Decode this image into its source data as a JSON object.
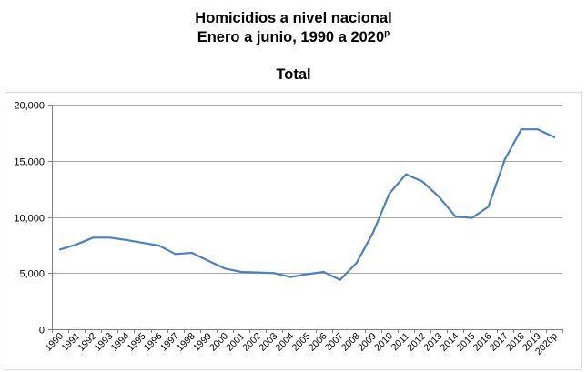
{
  "header": {
    "title_line1": "Homicidios a nivel nacional",
    "title_line2": "Enero a junio, 1990 a 2020",
    "title_sup": "p"
  },
  "chart_data": {
    "type": "line",
    "title": "Total",
    "xlabel": "",
    "ylabel": "",
    "ylim": [
      0,
      20000
    ],
    "yticks": [
      0,
      5000,
      10000,
      15000,
      20000
    ],
    "ytick_labels": [
      "0",
      "5,000",
      "10,000",
      "15,000",
      "20,000"
    ],
    "grid": true,
    "legend": "none",
    "line_color": "#4F81BD",
    "categories": [
      "1990",
      "1991",
      "1992",
      "1993",
      "1994",
      "1995",
      "1996",
      "1997",
      "1998",
      "1999",
      "2000",
      "2001",
      "2002",
      "2003",
      "2004",
      "2005",
      "2006",
      "2007",
      "2008",
      "2009",
      "2010",
      "2011",
      "2012",
      "2013",
      "2014",
      "2015",
      "2016",
      "2017",
      "2018",
      "2019",
      "2020p"
    ],
    "series": [
      {
        "values": [
          7100,
          7550,
          8150,
          8150,
          7950,
          7700,
          7450,
          6700,
          6800,
          6100,
          5400,
          5100,
          5050,
          5000,
          4650,
          4900,
          5100,
          4400,
          5900,
          8600,
          12100,
          13800,
          13150,
          11800,
          10050,
          9900,
          10900,
          15100,
          17800,
          17800,
          17100
        ]
      }
    ]
  }
}
